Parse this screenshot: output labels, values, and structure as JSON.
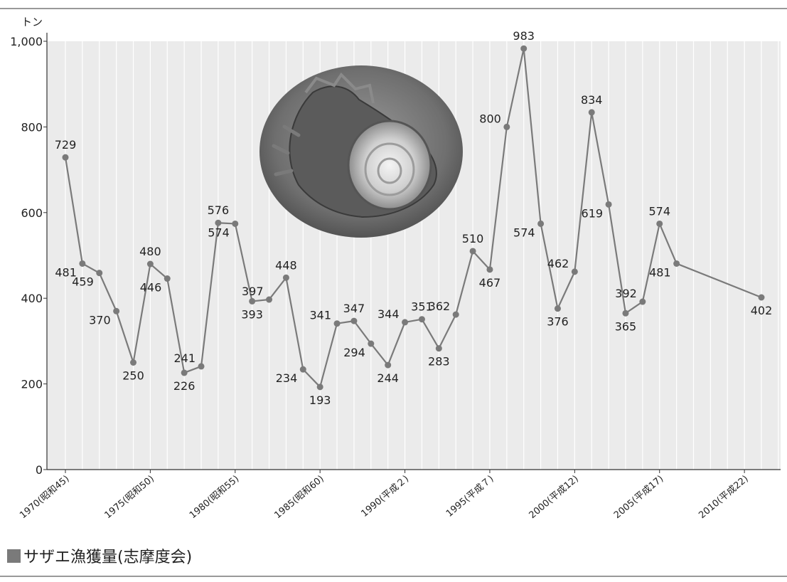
{
  "chart_data": {
    "type": "line",
    "ylabel": "トン",
    "ylim": [
      0,
      1000
    ],
    "yticks": [
      0,
      200,
      400,
      600,
      800,
      1000
    ],
    "ytick_labels": [
      "0",
      "200",
      "400",
      "600",
      "800",
      "1,000"
    ],
    "xlim": [
      1970,
      2012
    ],
    "xticks": [
      1970,
      1975,
      1980,
      1985,
      1990,
      1995,
      2000,
      2005,
      2010
    ],
    "xtick_labels": [
      "1970(昭和45)",
      "1975(昭和50)",
      "1980(昭和55)",
      "1985(昭和60)",
      "1990(平成２)",
      "1995(平成７)",
      "2000(平成12)",
      "2005(平成17)",
      "2010(平成22)"
    ],
    "grid": "vertical",
    "legend_position": "bottom-left",
    "series": [
      {
        "name": "サザエ漁獲量(志摩度会)",
        "color": "#7a7a7a",
        "points": [
          {
            "x": 1970,
            "y": 729
          },
          {
            "x": 1971,
            "y": 481
          },
          {
            "x": 1972,
            "y": 459
          },
          {
            "x": 1973,
            "y": 370
          },
          {
            "x": 1974,
            "y": 250
          },
          {
            "x": 1975,
            "y": 480
          },
          {
            "x": 1976,
            "y": 446
          },
          {
            "x": 1977,
            "y": 226
          },
          {
            "x": 1978,
            "y": 241
          },
          {
            "x": 1979,
            "y": 576
          },
          {
            "x": 1980,
            "y": 574
          },
          {
            "x": 1981,
            "y": 393
          },
          {
            "x": 1982,
            "y": 397
          },
          {
            "x": 1983,
            "y": 448
          },
          {
            "x": 1984,
            "y": 234
          },
          {
            "x": 1985,
            "y": 193
          },
          {
            "x": 1986,
            "y": 341
          },
          {
            "x": 1987,
            "y": 347
          },
          {
            "x": 1988,
            "y": 294
          },
          {
            "x": 1989,
            "y": 244
          },
          {
            "x": 1990,
            "y": 344
          },
          {
            "x": 1991,
            "y": 351
          },
          {
            "x": 1992,
            "y": 283
          },
          {
            "x": 1993,
            "y": 362
          },
          {
            "x": 1994,
            "y": 510
          },
          {
            "x": 1995,
            "y": 467
          },
          {
            "x": 1996,
            "y": 800
          },
          {
            "x": 1997,
            "y": 983
          },
          {
            "x": 1998,
            "y": 574
          },
          {
            "x": 1999,
            "y": 376
          },
          {
            "x": 2000,
            "y": 462
          },
          {
            "x": 2001,
            "y": 834
          },
          {
            "x": 2002,
            "y": 619
          },
          {
            "x": 2003,
            "y": 365
          },
          {
            "x": 2004,
            "y": 392
          },
          {
            "x": 2005,
            "y": 574
          },
          {
            "x": 2006,
            "y": 481
          },
          {
            "x": 2011,
            "y": 402
          }
        ]
      }
    ]
  },
  "legend": {
    "label": "サザエ漁獲量(志摩度会)",
    "swatch_color": "#7a7a7a"
  },
  "illustration": {
    "icon": "turban-shell-photo"
  }
}
